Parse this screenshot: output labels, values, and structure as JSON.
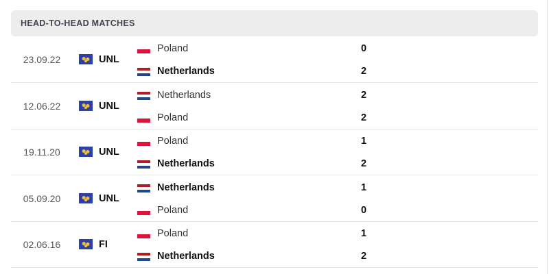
{
  "header": {
    "title": "HEAD-TO-HEAD MATCHES"
  },
  "colors": {
    "header_bg": "#ededed",
    "poland_flag": [
      "#ffffff",
      "#dc143c"
    ],
    "netherlands_flag": [
      "#ae1c28",
      "#ffffff",
      "#21468b"
    ],
    "competition_icon": "#2e3fa8"
  },
  "matches": [
    {
      "date": "23.09.22",
      "competition": "UNL",
      "competition_icon": "world-map-icon",
      "home": {
        "name": "Poland",
        "flag": "poland",
        "score": "0",
        "winner": false
      },
      "away": {
        "name": "Netherlands",
        "flag": "netherlands",
        "score": "2",
        "winner": true
      }
    },
    {
      "date": "12.06.22",
      "competition": "UNL",
      "competition_icon": "world-map-icon",
      "home": {
        "name": "Netherlands",
        "flag": "netherlands",
        "score": "2",
        "winner": false
      },
      "away": {
        "name": "Poland",
        "flag": "poland",
        "score": "2",
        "winner": false
      }
    },
    {
      "date": "19.11.20",
      "competition": "UNL",
      "competition_icon": "world-map-icon",
      "home": {
        "name": "Poland",
        "flag": "poland",
        "score": "1",
        "winner": false
      },
      "away": {
        "name": "Netherlands",
        "flag": "netherlands",
        "score": "2",
        "winner": true
      }
    },
    {
      "date": "05.09.20",
      "competition": "UNL",
      "competition_icon": "world-map-icon",
      "home": {
        "name": "Netherlands",
        "flag": "netherlands",
        "score": "1",
        "winner": true
      },
      "away": {
        "name": "Poland",
        "flag": "poland",
        "score": "0",
        "winner": false
      }
    },
    {
      "date": "02.06.16",
      "competition": "FI",
      "competition_icon": "world-map-icon",
      "home": {
        "name": "Poland",
        "flag": "poland",
        "score": "1",
        "winner": false
      },
      "away": {
        "name": "Netherlands",
        "flag": "netherlands",
        "score": "2",
        "winner": true
      }
    }
  ]
}
